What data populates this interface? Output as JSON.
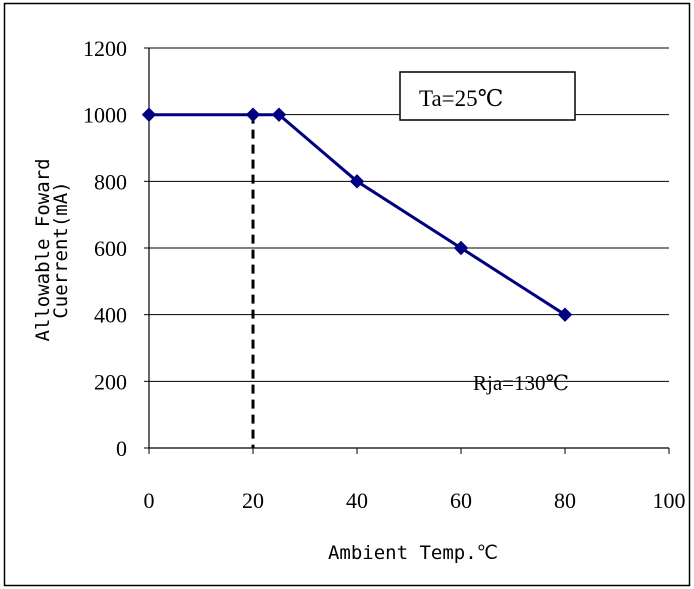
{
  "chart_data": {
    "type": "line",
    "x": [
      0,
      20,
      25,
      40,
      60,
      80
    ],
    "series": [
      {
        "values": [
          1000,
          1000,
          1000,
          800,
          600,
          400
        ],
        "color": "#000080",
        "marker": "diamond"
      }
    ],
    "x_ticks": [
      "0",
      "20",
      "40",
      "60",
      "80",
      "100"
    ],
    "y_ticks": [
      "0",
      "200",
      "400",
      "600",
      "800",
      "1000",
      "1200"
    ],
    "xlim": [
      0,
      100
    ],
    "ylim": [
      0,
      1200
    ],
    "xlabel": "Ambient Temp.℃",
    "ylabel": [
      "Allowable Foward",
      "Cuerrent(mA)"
    ],
    "grid": "horizontal",
    "reference_line": {
      "x": 20,
      "style": "dashed",
      "color": "#000000"
    },
    "annotations": {
      "boxed_label": "Ta=25℃",
      "label": "Rja=130℃"
    }
  }
}
